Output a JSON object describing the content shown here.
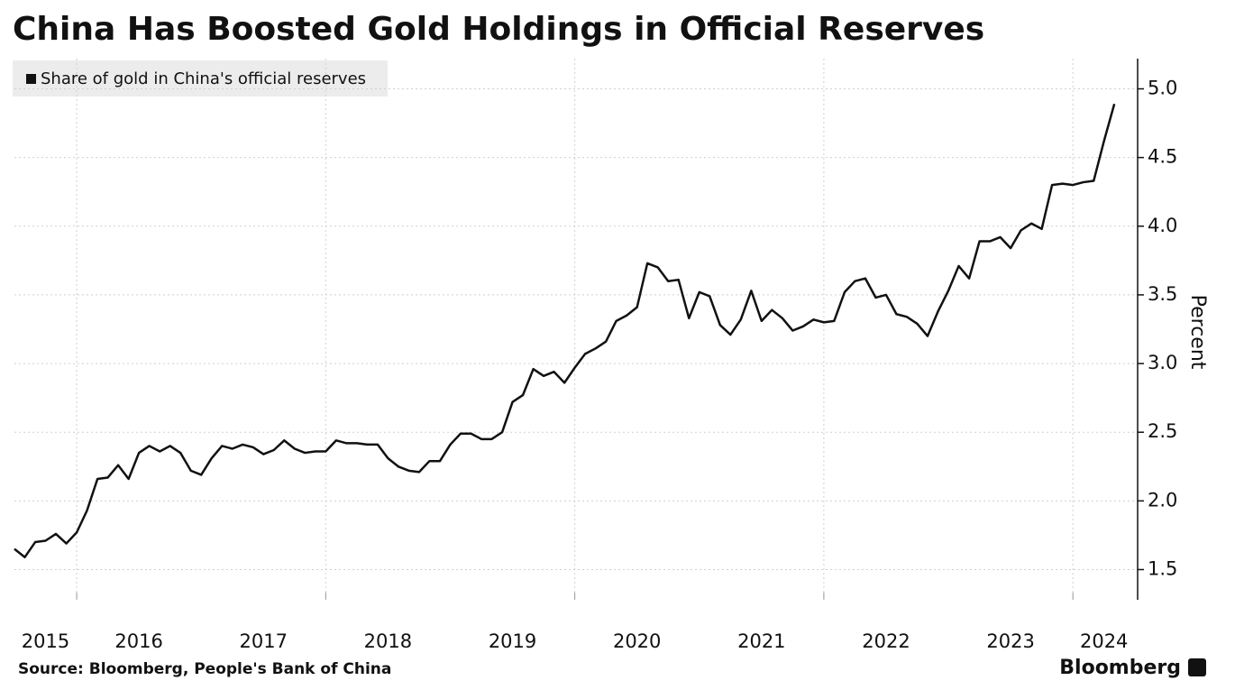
{
  "chart_data": {
    "type": "line",
    "title": "China Has Boosted Gold Holdings in Official Reserves",
    "y_label": "Percent",
    "source": "Source: Bloomberg, People's Bank of China",
    "brand": "Bloomberg",
    "legend_position": "top-left",
    "grid": true,
    "xlim": [
      2015.5,
      2024.52
    ],
    "ylim": [
      1.28,
      5.22
    ],
    "yticks": [
      1.5,
      {
        "value": 2,
        "label": "2.0"
      },
      2.5,
      {
        "value": 3,
        "label": "3.0"
      },
      3.5,
      {
        "value": 4,
        "label": "4.0"
      },
      4.5,
      {
        "value": 5,
        "label": "5.0"
      }
    ],
    "xticks": [
      {
        "value": 2015.75,
        "label": "2015"
      },
      {
        "value": 2016.5,
        "label": "2016"
      },
      {
        "value": 2017.5,
        "label": "2017"
      },
      {
        "value": 2018.5,
        "label": "2018"
      },
      {
        "value": 2019.5,
        "label": "2019"
      },
      {
        "value": 2020.5,
        "label": "2020"
      },
      {
        "value": 2021.5,
        "label": "2021"
      },
      {
        "value": 2022.5,
        "label": "2022"
      },
      {
        "value": 2023.5,
        "label": "2023"
      },
      {
        "value": 2024.25,
        "label": "2024"
      }
    ],
    "xgrid": [
      2016,
      2018,
      2020,
      2022,
      2024
    ],
    "x": [
      2015.5,
      2015.583,
      2015.667,
      2015.75,
      2015.833,
      2015.917,
      2016,
      2016.083,
      2016.167,
      2016.25,
      2016.333,
      2016.417,
      2016.5,
      2016.583,
      2016.667,
      2016.75,
      2016.833,
      2016.917,
      2017,
      2017.083,
      2017.167,
      2017.25,
      2017.333,
      2017.417,
      2017.5,
      2017.583,
      2017.667,
      2017.75,
      2017.833,
      2017.917,
      2018,
      2018.083,
      2018.167,
      2018.25,
      2018.333,
      2018.417,
      2018.5,
      2018.583,
      2018.667,
      2018.75,
      2018.833,
      2018.917,
      2019,
      2019.083,
      2019.167,
      2019.25,
      2019.333,
      2019.417,
      2019.5,
      2019.583,
      2019.667,
      2019.75,
      2019.833,
      2019.917,
      2020,
      2020.083,
      2020.167,
      2020.25,
      2020.333,
      2020.417,
      2020.5,
      2020.583,
      2020.667,
      2020.75,
      2020.833,
      2020.917,
      2021,
      2021.083,
      2021.167,
      2021.25,
      2021.333,
      2021.417,
      2021.5,
      2021.583,
      2021.667,
      2021.75,
      2021.833,
      2021.917,
      2022,
      2022.083,
      2022.167,
      2022.25,
      2022.333,
      2022.417,
      2022.5,
      2022.583,
      2022.667,
      2022.75,
      2022.833,
      2022.917,
      2023,
      2023.083,
      2023.167,
      2023.25,
      2023.333,
      2023.417,
      2023.5,
      2023.583,
      2023.667,
      2023.75,
      2023.833,
      2023.917,
      2024,
      2024.083,
      2024.167,
      2024.25,
      2024.333
    ],
    "series": [
      {
        "name": "Share of gold in China's official reserves",
        "color": "#111111",
        "values": [
          1.65,
          1.59,
          1.7,
          1.71,
          1.76,
          1.69,
          1.77,
          1.93,
          2.16,
          2.17,
          2.26,
          2.16,
          2.35,
          2.4,
          2.36,
          2.4,
          2.35,
          2.22,
          2.19,
          2.31,
          2.4,
          2.38,
          2.41,
          2.39,
          2.34,
          2.37,
          2.44,
          2.38,
          2.35,
          2.36,
          2.36,
          2.44,
          2.42,
          2.42,
          2.41,
          2.41,
          2.31,
          2.25,
          2.22,
          2.21,
          2.29,
          2.29,
          2.41,
          2.49,
          2.49,
          2.45,
          2.45,
          2.5,
          2.72,
          2.77,
          2.96,
          2.91,
          2.94,
          2.86,
          2.97,
          3.07,
          3.11,
          3.16,
          3.31,
          3.35,
          3.41,
          3.73,
          3.7,
          3.6,
          3.61,
          3.33,
          3.52,
          3.49,
          3.28,
          3.21,
          3.32,
          3.53,
          3.31,
          3.39,
          3.33,
          3.24,
          3.27,
          3.32,
          3.3,
          3.31,
          3.52,
          3.6,
          3.62,
          3.48,
          3.5,
          3.36,
          3.34,
          3.29,
          3.2,
          3.38,
          3.53,
          3.71,
          3.62,
          3.89,
          3.89,
          3.92,
          3.84,
          3.97,
          4.02,
          3.98,
          4.3,
          4.31,
          4.3,
          4.32,
          4.33,
          4.62,
          4.89
        ]
      }
    ]
  }
}
